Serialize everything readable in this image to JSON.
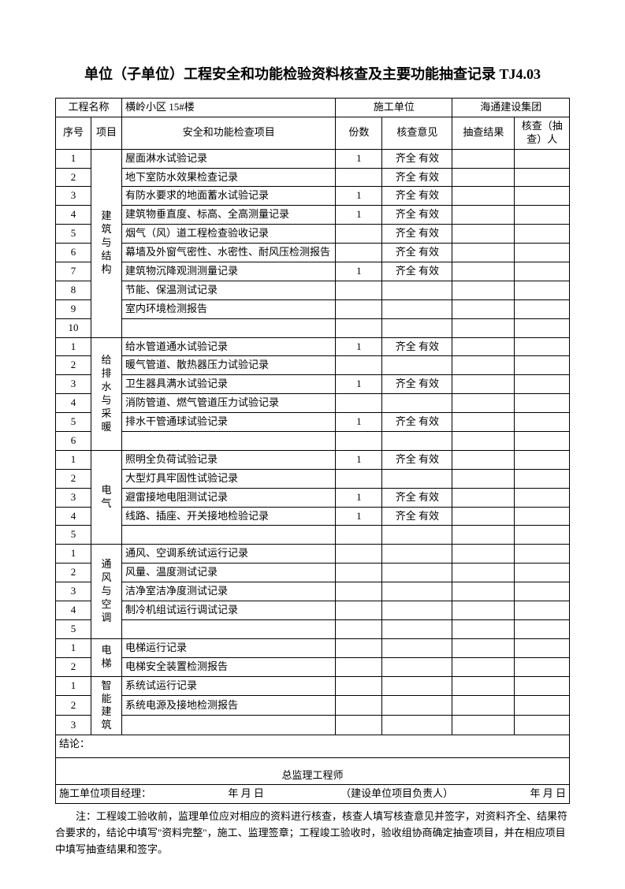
{
  "title": "单位（子单位）工程安全和功能检验资料核查及主要功能抽查记录 TJ4.03",
  "header": {
    "projectNameLabel": "工程名称",
    "projectName": "横岭小区 15#楼",
    "constructorLabel": "施工单位",
    "constructor": "海通建设集团"
  },
  "columns": {
    "seq": "序号",
    "cat": "项目",
    "item": "安全和功能检查项目",
    "copies": "份数",
    "opinion": "核查意见",
    "result": "抽查结果",
    "person": "核查（抽查）人"
  },
  "groups": [
    {
      "cat": "建筑与结构",
      "rows": [
        {
          "n": "1",
          "item": "屋面淋水试验记录",
          "c": "1",
          "op": "齐全  有效"
        },
        {
          "n": "2",
          "item": "地下室防水效果检查记录",
          "c": "",
          "op": "齐全  有效"
        },
        {
          "n": "3",
          "item": "有防水要求的地面蓄水试验记录",
          "c": "1",
          "op": "齐全  有效"
        },
        {
          "n": "4",
          "item": "建筑物垂直度、标高、全高测量记录",
          "c": "1",
          "op": "齐全  有效"
        },
        {
          "n": "5",
          "item": "烟气（风）道工程检查验收记录",
          "c": "",
          "op": "齐全  有效"
        },
        {
          "n": "6",
          "item": "幕墙及外窗气密性、水密性、耐风压检测报告",
          "c": "",
          "op": "齐全  有效"
        },
        {
          "n": "7",
          "item": "建筑物沉降观测测量记录",
          "c": "1",
          "op": "齐全  有效"
        },
        {
          "n": "8",
          "item": "节能、保温测试记录",
          "c": "",
          "op": ""
        },
        {
          "n": "9",
          "item": "室内环境检测报告",
          "c": "",
          "op": ""
        },
        {
          "n": "10",
          "item": "",
          "c": "",
          "op": ""
        }
      ]
    },
    {
      "cat": "给排水与采暖",
      "rows": [
        {
          "n": "1",
          "item": "给水管道通水试验记录",
          "c": "1",
          "op": "齐全  有效"
        },
        {
          "n": "2",
          "item": "暖气管道、散热器压力试验记录",
          "c": "",
          "op": ""
        },
        {
          "n": "3",
          "item": "卫生器具满水试验记录",
          "c": "1",
          "op": "齐全  有效"
        },
        {
          "n": "4",
          "item": "消防管道、燃气管道压力试验记录",
          "c": "",
          "op": ""
        },
        {
          "n": "5",
          "item": "排水干管通球试验记录",
          "c": "1",
          "op": "齐全  有效"
        },
        {
          "n": "6",
          "item": "",
          "c": "",
          "op": ""
        }
      ]
    },
    {
      "cat": "电气",
      "rows": [
        {
          "n": "1",
          "item": "照明全负荷试验记录",
          "c": "1",
          "op": "齐全  有效"
        },
        {
          "n": "2",
          "item": "大型灯具牢固性试验记录",
          "c": "",
          "op": ""
        },
        {
          "n": "3",
          "item": "避雷接地电阻测试记录",
          "c": "1",
          "op": "齐全  有效"
        },
        {
          "n": "4",
          "item": "线路、插座、开关接地检验记录",
          "c": "1",
          "op": "齐全  有效"
        },
        {
          "n": "5",
          "item": "",
          "c": "",
          "op": ""
        }
      ]
    },
    {
      "cat": "通风与空调",
      "rows": [
        {
          "n": "1",
          "item": "通风、空调系统试运行记录",
          "c": "",
          "op": ""
        },
        {
          "n": "2",
          "item": "风量、温度测试记录",
          "c": "",
          "op": ""
        },
        {
          "n": "3",
          "item": "洁净室洁净度测试记录",
          "c": "",
          "op": ""
        },
        {
          "n": "4",
          "item": "制冷机组试运行调试记录",
          "c": "",
          "op": ""
        },
        {
          "n": "5",
          "item": "",
          "c": "",
          "op": ""
        }
      ]
    },
    {
      "cat": "电梯",
      "rows": [
        {
          "n": "1",
          "item": "电梯运行记录",
          "c": "",
          "op": ""
        },
        {
          "n": "2",
          "item": "电梯安全装置检测报告",
          "c": "",
          "op": ""
        }
      ]
    },
    {
      "cat": "智能建筑",
      "rows": [
        {
          "n": "1",
          "item": "系统试运行记录",
          "c": "",
          "op": ""
        },
        {
          "n": "2",
          "item": "系统电源及接地检测报告",
          "c": "",
          "op": ""
        },
        {
          "n": "3",
          "item": "",
          "c": "",
          "op": ""
        }
      ]
    }
  ],
  "conclusionLabel": "结论：",
  "sign": {
    "supervisor": "总监理工程师",
    "pmLabel": "施工单位项目经理：",
    "date1": "年    月    日",
    "owner": "（建设单位项目负责人）",
    "date2": "年    月    日"
  },
  "note": "注：工程竣工验收前，监理单位应对相应的资料进行核查，核查人填写核查意见并签字，对资料齐全、结果符合要求的，结论中填写\"资料完整\"，施工、监理签章；工程竣工验收时，验收组协商确定抽查项目，并在相应项目中填写抽查结果和签字。"
}
